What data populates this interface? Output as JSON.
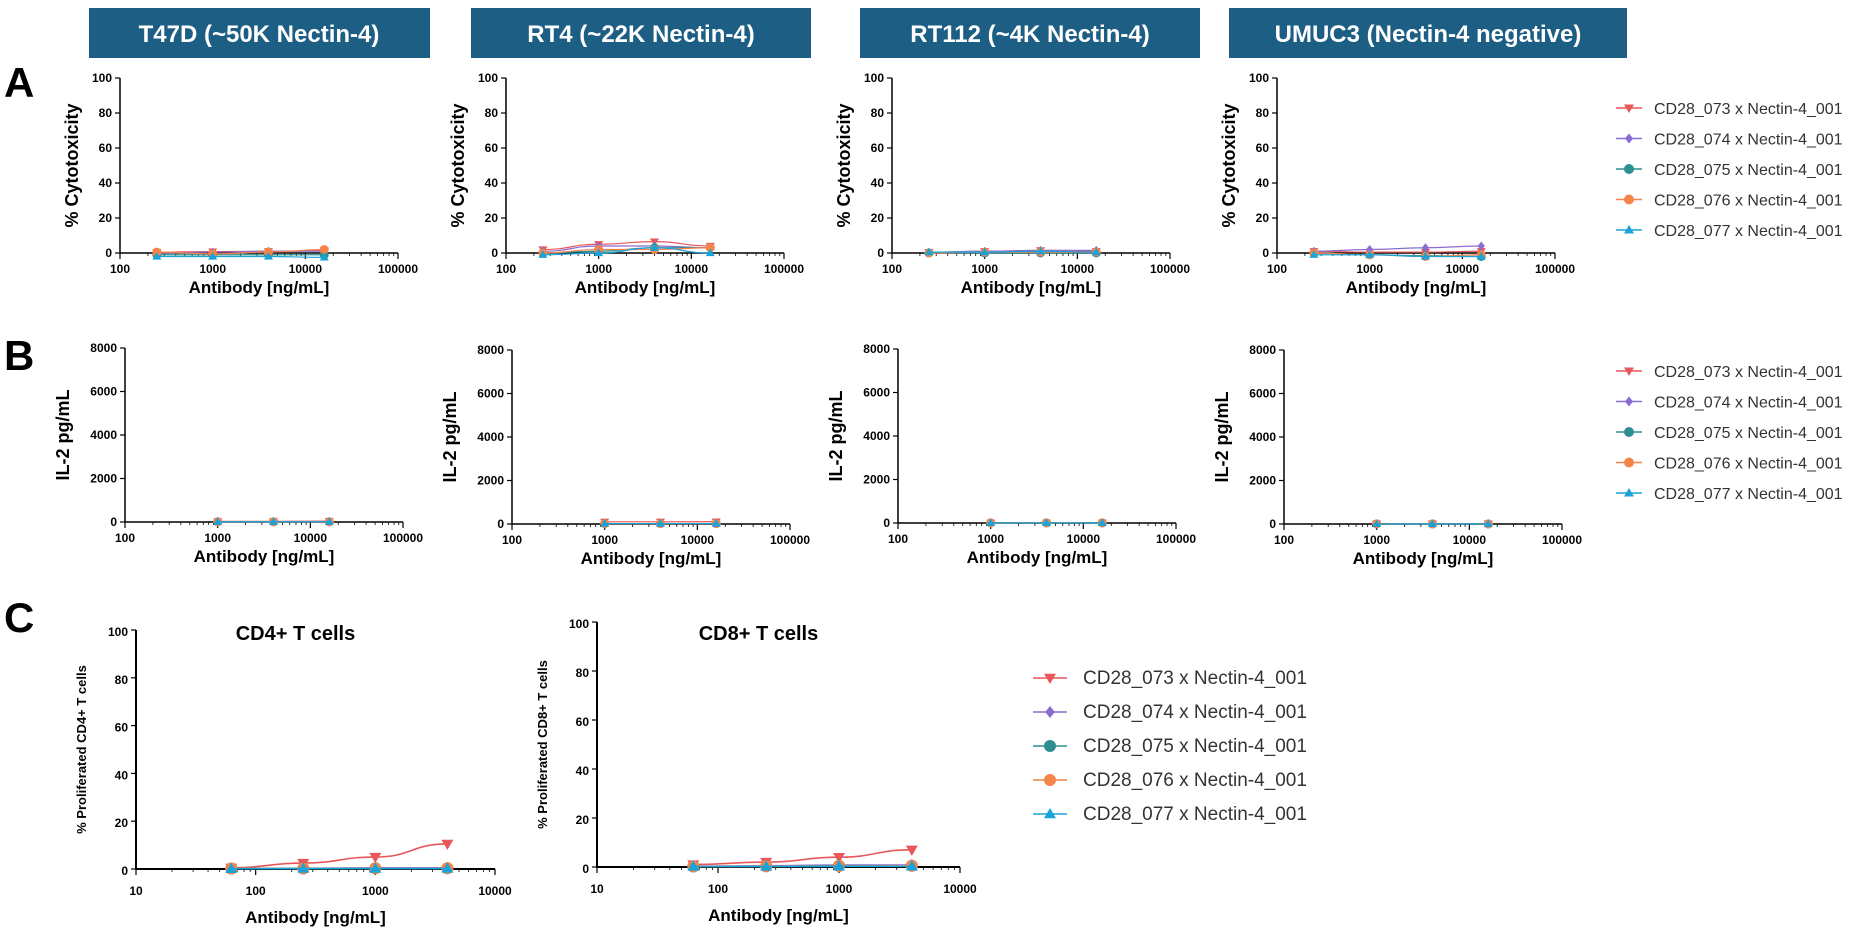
{
  "headers": [
    {
      "label": "T47D (~50K Nectin-4)",
      "bg": "#1d5e84"
    },
    {
      "label": "RT4 (~22K Nectin-4)",
      "bg": "#1d5e84"
    },
    {
      "label": "RT112 (~4K Nectin-4)",
      "bg": "#1d5e84"
    },
    {
      "label": "UMUC3 (Nectin-4 negative)",
      "bg": "#1d5e84"
    }
  ],
  "panel_letters": [
    "A",
    "B",
    "C"
  ],
  "series": [
    {
      "name": "CD28_073 x Nectin-4_001",
      "color": "#e8575a",
      "marker": "triangle-down"
    },
    {
      "name": "CD28_074 x Nectin-4_001",
      "color": "#8a6bd1",
      "marker": "diamond"
    },
    {
      "name": "CD28_075 x Nectin-4_001",
      "color": "#2e8f91",
      "marker": "circle"
    },
    {
      "name": "CD28_076 x Nectin-4_001",
      "color": "#f4844a",
      "marker": "circle"
    },
    {
      "name": "CD28_077 x Nectin-4_001",
      "color": "#1aa3d8",
      "marker": "triangle-up"
    }
  ],
  "chart_data": [
    {
      "id": "A1",
      "type": "line",
      "xscale": "log",
      "xlim": [
        100,
        100000
      ],
      "ylim": [
        0,
        100
      ],
      "xticks": [
        "100",
        "1000",
        "10000",
        "100000"
      ],
      "yticks": [
        "0",
        "20",
        "40",
        "60",
        "80",
        "100"
      ],
      "xlabel": "Antibody [ng/mL]",
      "ylabel": "% Cytotoxicity",
      "x": [
        250,
        1000,
        4000,
        16000
      ],
      "series": [
        {
          "name": "CD28_073 x Nectin-4_001",
          "values": [
            0.5,
            0.8,
            1,
            1.5
          ]
        },
        {
          "name": "CD28_074 x Nectin-4_001",
          "values": [
            0,
            0.5,
            1,
            1
          ]
        },
        {
          "name": "CD28_075 x Nectin-4_001",
          "values": [
            -1,
            -1,
            -1,
            -1
          ]
        },
        {
          "name": "CD28_076 x Nectin-4_001",
          "values": [
            0.5,
            -0.5,
            0.5,
            2
          ]
        },
        {
          "name": "CD28_077 x Nectin-4_001",
          "values": [
            -2,
            -2,
            -2,
            -2.5
          ]
        }
      ]
    },
    {
      "id": "A2",
      "type": "line",
      "xscale": "log",
      "xlim": [
        100,
        100000
      ],
      "ylim": [
        0,
        100
      ],
      "xticks": [
        "100",
        "1000",
        "10000",
        "100000"
      ],
      "yticks": [
        "0",
        "20",
        "40",
        "60",
        "80",
        "100"
      ],
      "xlabel": "Antibody [ng/mL]",
      "ylabel": "% Cytotoxicity",
      "x": [
        250,
        1000,
        4000,
        16000
      ],
      "series": [
        {
          "name": "CD28_073 x Nectin-4_001",
          "values": [
            2,
            5,
            6.5,
            4
          ]
        },
        {
          "name": "CD28_074 x Nectin-4_001",
          "values": [
            1,
            4,
            4,
            3
          ]
        },
        {
          "name": "CD28_075 x Nectin-4_001",
          "values": [
            0,
            1,
            3,
            3
          ]
        },
        {
          "name": "CD28_076 x Nectin-4_001",
          "values": [
            0,
            2,
            2,
            3
          ]
        },
        {
          "name": "CD28_077 x Nectin-4_001",
          "values": [
            -1,
            0,
            3,
            0
          ]
        }
      ]
    },
    {
      "id": "A3",
      "type": "line",
      "xscale": "log",
      "xlim": [
        100,
        100000
      ],
      "ylim": [
        0,
        100
      ],
      "xticks": [
        "100",
        "1000",
        "10000",
        "100000"
      ],
      "yticks": [
        "0",
        "20",
        "40",
        "60",
        "80",
        "100"
      ],
      "xlabel": "Antibody [ng/mL]",
      "ylabel": "% Cytotoxicity",
      "x": [
        250,
        1000,
        4000,
        16000
      ],
      "series": [
        {
          "name": "CD28_073 x Nectin-4_001",
          "values": [
            0.5,
            1,
            1.5,
            1
          ]
        },
        {
          "name": "CD28_074 x Nectin-4_001",
          "values": [
            0.5,
            1,
            1.5,
            1.5
          ]
        },
        {
          "name": "CD28_075 x Nectin-4_001",
          "values": [
            0,
            0,
            0,
            0
          ]
        },
        {
          "name": "CD28_076 x Nectin-4_001",
          "values": [
            0,
            0.5,
            0.5,
            0.5
          ]
        },
        {
          "name": "CD28_077 x Nectin-4_001",
          "values": [
            0.5,
            0.5,
            1,
            0.5
          ]
        }
      ]
    },
    {
      "id": "A4",
      "type": "line",
      "xscale": "log",
      "xlim": [
        100,
        100000
      ],
      "ylim": [
        0,
        100
      ],
      "xticks": [
        "100",
        "1000",
        "10000",
        "100000"
      ],
      "yticks": [
        "0",
        "20",
        "40",
        "60",
        "80",
        "100"
      ],
      "xlabel": "Antibody [ng/mL]",
      "ylabel": "% Cytotoxicity",
      "x": [
        250,
        1000,
        4000,
        16000
      ],
      "series": [
        {
          "name": "CD28_073 x Nectin-4_001",
          "values": [
            1,
            0.5,
            0.5,
            1
          ]
        },
        {
          "name": "CD28_074 x Nectin-4_001",
          "values": [
            1,
            2,
            3,
            4
          ]
        },
        {
          "name": "CD28_075 x Nectin-4_001",
          "values": [
            0,
            -1,
            -1.5,
            -2
          ]
        },
        {
          "name": "CD28_076 x Nectin-4_001",
          "values": [
            0,
            -1,
            -2,
            -1
          ]
        },
        {
          "name": "CD28_077 x Nectin-4_001",
          "values": [
            -1,
            -1,
            -2,
            -2
          ]
        }
      ]
    },
    {
      "id": "B1",
      "type": "line",
      "xscale": "log",
      "xlim": [
        100,
        100000
      ],
      "ylim": [
        0,
        8000
      ],
      "xticks": [
        "100",
        "1000",
        "10000",
        "100000"
      ],
      "yticks": [
        "0",
        "2000",
        "4000",
        "6000",
        "8000"
      ],
      "xlabel": "Antibody [ng/mL]",
      "ylabel": "IL-2 pg/mL",
      "x": [
        1000,
        4000,
        16000
      ],
      "series": [
        {
          "name": "CD28_073 x Nectin-4_001",
          "values": [
            30,
            30,
            40
          ]
        },
        {
          "name": "CD28_074 x Nectin-4_001",
          "values": [
            10,
            10,
            10
          ]
        },
        {
          "name": "CD28_075 x Nectin-4_001",
          "values": [
            10,
            10,
            10
          ]
        },
        {
          "name": "CD28_076 x Nectin-4_001",
          "values": [
            10,
            10,
            10
          ]
        },
        {
          "name": "CD28_077 x Nectin-4_001",
          "values": [
            10,
            10,
            10
          ]
        }
      ]
    },
    {
      "id": "B2",
      "type": "line",
      "xscale": "log",
      "xlim": [
        100,
        100000
      ],
      "ylim": [
        0,
        8000
      ],
      "xticks": [
        "100",
        "1000",
        "10000",
        "100000"
      ],
      "yticks": [
        "0",
        "2000",
        "4000",
        "6000",
        "8000"
      ],
      "xlabel": "Antibody [ng/mL]",
      "ylabel": "IL-2 pg/mL",
      "x": [
        1000,
        4000,
        16000
      ],
      "series": [
        {
          "name": "CD28_073 x Nectin-4_001",
          "values": [
            100,
            100,
            110
          ]
        },
        {
          "name": "CD28_074 x Nectin-4_001",
          "values": [
            20,
            20,
            20
          ]
        },
        {
          "name": "CD28_075 x Nectin-4_001",
          "values": [
            20,
            20,
            20
          ]
        },
        {
          "name": "CD28_076 x Nectin-4_001",
          "values": [
            20,
            20,
            20
          ]
        },
        {
          "name": "CD28_077 x Nectin-4_001",
          "values": [
            20,
            20,
            20
          ]
        }
      ]
    },
    {
      "id": "B3",
      "type": "line",
      "xscale": "log",
      "xlim": [
        100,
        100000
      ],
      "ylim": [
        0,
        8000
      ],
      "xticks": [
        "100",
        "1000",
        "10000",
        "100000"
      ],
      "yticks": [
        "0",
        "2000",
        "4000",
        "6000",
        "8000"
      ],
      "xlabel": "Antibody [ng/mL]",
      "ylabel": "IL-2 pg/mL",
      "x": [
        1000,
        4000,
        16000
      ],
      "series": [
        {
          "name": "CD28_073 x Nectin-4_001",
          "values": [
            10,
            10,
            10
          ]
        },
        {
          "name": "CD28_074 x Nectin-4_001",
          "values": [
            5,
            5,
            5
          ]
        },
        {
          "name": "CD28_075 x Nectin-4_001",
          "values": [
            5,
            5,
            5
          ]
        },
        {
          "name": "CD28_076 x Nectin-4_001",
          "values": [
            5,
            5,
            5
          ]
        },
        {
          "name": "CD28_077 x Nectin-4_001",
          "values": [
            5,
            5,
            5
          ]
        }
      ]
    },
    {
      "id": "B4",
      "type": "line",
      "xscale": "log",
      "xlim": [
        100,
        100000
      ],
      "ylim": [
        0,
        8000
      ],
      "xticks": [
        "100",
        "1000",
        "10000",
        "100000"
      ],
      "yticks": [
        "0",
        "2000",
        "4000",
        "6000",
        "8000"
      ],
      "xlabel": "Antibody [ng/mL]",
      "ylabel": "IL-2 pg/mL",
      "x": [
        1000,
        4000,
        16000
      ],
      "series": [
        {
          "name": "CD28_073 x Nectin-4_001",
          "values": [
            20,
            20,
            20
          ]
        },
        {
          "name": "CD28_074 x Nectin-4_001",
          "values": [
            5,
            5,
            5
          ]
        },
        {
          "name": "CD28_075 x Nectin-4_001",
          "values": [
            5,
            5,
            5
          ]
        },
        {
          "name": "CD28_076 x Nectin-4_001",
          "values": [
            5,
            5,
            5
          ]
        },
        {
          "name": "CD28_077 x Nectin-4_001",
          "values": [
            5,
            5,
            5
          ]
        }
      ]
    },
    {
      "id": "C1",
      "type": "line",
      "xscale": "log",
      "xlim": [
        10,
        10000
      ],
      "ylim": [
        0,
        100
      ],
      "xticks": [
        "10",
        "100",
        "1000",
        "10000"
      ],
      "yticks": [
        "0",
        "20",
        "40",
        "60",
        "80",
        "100"
      ],
      "title": "CD4+ T cells",
      "xlabel": "Antibody [ng/mL]",
      "ylabel": "% Proliferated CD4+ T cells",
      "x": [
        62.5,
        250,
        1000,
        4000
      ],
      "series": [
        {
          "name": "CD28_073 x Nectin-4_001",
          "values": [
            0.5,
            2.5,
            5,
            10.5
          ]
        },
        {
          "name": "CD28_074 x Nectin-4_001",
          "values": [
            0.2,
            0.3,
            0.5,
            0.5
          ]
        },
        {
          "name": "CD28_075 x Nectin-4_001",
          "values": [
            0.2,
            0.2,
            0.3,
            0.3
          ]
        },
        {
          "name": "CD28_076 x Nectin-4_001",
          "values": [
            0.2,
            0.2,
            0.3,
            0.3
          ]
        },
        {
          "name": "CD28_077 x Nectin-4_001",
          "values": [
            0.1,
            0.2,
            0.2,
            0.2
          ]
        }
      ]
    },
    {
      "id": "C2",
      "type": "line",
      "xscale": "log",
      "xlim": [
        10,
        10000
      ],
      "ylim": [
        0,
        100
      ],
      "xticks": [
        "10",
        "100",
        "1000",
        "10000"
      ],
      "yticks": [
        "0",
        "20",
        "40",
        "60",
        "80",
        "100"
      ],
      "title": "CD8+ T cells",
      "xlabel": "Antibody [ng/mL]",
      "ylabel": "% Proliferated CD8+ T cells",
      "x": [
        62.5,
        250,
        1000,
        4000
      ],
      "series": [
        {
          "name": "CD28_073 x Nectin-4_001",
          "values": [
            1,
            2,
            4,
            7
          ]
        },
        {
          "name": "CD28_074 x Nectin-4_001",
          "values": [
            0.3,
            0.5,
            0.8,
            0.8
          ]
        },
        {
          "name": "CD28_075 x Nectin-4_001",
          "values": [
            0.2,
            0.3,
            0.5,
            0.5
          ]
        },
        {
          "name": "CD28_076 x Nectin-4_001",
          "values": [
            0.2,
            0.3,
            0.4,
            0.5
          ]
        },
        {
          "name": "CD28_077 x Nectin-4_001",
          "values": [
            0.2,
            0.2,
            0.3,
            0.3
          ]
        }
      ]
    }
  ]
}
